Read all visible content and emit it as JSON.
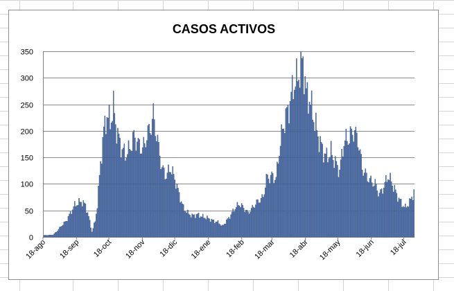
{
  "chart_data": {
    "type": "bar",
    "title": "CASOS ACTIVOS",
    "xlabel": "",
    "ylabel": "",
    "ylim": [
      0,
      350
    ],
    "yticks": [
      0,
      50,
      100,
      150,
      200,
      250,
      300,
      350
    ],
    "grid": true,
    "legend": "none",
    "bar_color": "#4f6fa8",
    "bar_edge_color": "#2c4a80",
    "x_start": "2020-08-18",
    "x_end": "2021-07-28",
    "x_tick_labels": [
      {
        "label": "18-ago",
        "date": "2020-08-18"
      },
      {
        "label": "18-sep",
        "date": "2020-09-18"
      },
      {
        "label": "18-oct",
        "date": "2020-10-18"
      },
      {
        "label": "18-nov",
        "date": "2020-11-18"
      },
      {
        "label": "18-dic",
        "date": "2020-12-18"
      },
      {
        "label": "18-ene",
        "date": "2021-01-18"
      },
      {
        "label": "18-feb",
        "date": "2021-02-18"
      },
      {
        "label": "18-mar",
        "date": "2021-03-18"
      },
      {
        "label": "18-abr",
        "date": "2021-04-18"
      },
      {
        "label": "18-may",
        "date": "2021-05-18"
      },
      {
        "label": "18-jun",
        "date": "2021-06-18"
      },
      {
        "label": "18-jul",
        "date": "2021-07-18"
      }
    ],
    "anchors": [
      [
        "2020-08-18",
        3
      ],
      [
        "2020-08-27",
        4
      ],
      [
        "2020-08-31",
        12
      ],
      [
        "2020-09-04",
        22
      ],
      [
        "2020-09-08",
        30
      ],
      [
        "2020-09-12",
        45
      ],
      [
        "2020-09-16",
        60
      ],
      [
        "2020-09-22",
        67
      ],
      [
        "2020-09-26",
        60
      ],
      [
        "2020-09-29",
        38
      ],
      [
        "2020-10-02",
        10
      ],
      [
        "2020-10-05",
        30
      ],
      [
        "2020-10-07",
        60
      ],
      [
        "2020-10-10",
        140
      ],
      [
        "2020-10-13",
        200
      ],
      [
        "2020-10-16",
        230
      ],
      [
        "2020-10-19",
        215
      ],
      [
        "2020-10-22",
        245
      ],
      [
        "2020-10-25",
        200
      ],
      [
        "2020-10-29",
        170
      ],
      [
        "2020-11-02",
        155
      ],
      [
        "2020-11-06",
        165
      ],
      [
        "2020-11-10",
        190
      ],
      [
        "2020-11-14",
        175
      ],
      [
        "2020-11-18",
        165
      ],
      [
        "2020-11-22",
        190
      ],
      [
        "2020-11-26",
        210
      ],
      [
        "2020-11-28",
        230
      ],
      [
        "2020-12-02",
        180
      ],
      [
        "2020-12-06",
        130
      ],
      [
        "2020-12-10",
        115
      ],
      [
        "2020-12-14",
        130
      ],
      [
        "2020-12-18",
        110
      ],
      [
        "2020-12-22",
        80
      ],
      [
        "2020-12-26",
        55
      ],
      [
        "2020-12-30",
        45
      ],
      [
        "2021-01-03",
        40
      ],
      [
        "2021-01-08",
        42
      ],
      [
        "2021-01-13",
        38
      ],
      [
        "2021-01-18",
        35
      ],
      [
        "2021-01-23",
        30
      ],
      [
        "2021-01-28",
        27
      ],
      [
        "2021-01-31",
        20
      ],
      [
        "2021-02-04",
        30
      ],
      [
        "2021-02-08",
        42
      ],
      [
        "2021-02-12",
        55
      ],
      [
        "2021-02-16",
        62
      ],
      [
        "2021-02-20",
        55
      ],
      [
        "2021-02-24",
        45
      ],
      [
        "2021-02-28",
        55
      ],
      [
        "2021-03-04",
        65
      ],
      [
        "2021-03-10",
        75
      ],
      [
        "2021-03-13",
        110
      ],
      [
        "2021-03-18",
        115
      ],
      [
        "2021-03-22",
        110
      ],
      [
        "2021-03-26",
        180
      ],
      [
        "2021-03-30",
        220
      ],
      [
        "2021-04-03",
        245
      ],
      [
        "2021-04-07",
        285
      ],
      [
        "2021-04-11",
        300
      ],
      [
        "2021-04-14",
        320
      ],
      [
        "2021-04-16",
        333
      ],
      [
        "2021-04-19",
        270
      ],
      [
        "2021-04-22",
        260
      ],
      [
        "2021-04-26",
        225
      ],
      [
        "2021-04-30",
        190
      ],
      [
        "2021-05-04",
        165
      ],
      [
        "2021-05-08",
        150
      ],
      [
        "2021-05-12",
        160
      ],
      [
        "2021-05-16",
        140
      ],
      [
        "2021-05-20",
        125
      ],
      [
        "2021-05-24",
        180
      ],
      [
        "2021-05-28",
        185
      ],
      [
        "2021-06-02",
        200
      ],
      [
        "2021-06-06",
        185
      ],
      [
        "2021-06-10",
        130
      ],
      [
        "2021-06-14",
        115
      ],
      [
        "2021-06-18",
        105
      ],
      [
        "2021-06-22",
        100
      ],
      [
        "2021-06-26",
        80
      ],
      [
        "2021-06-30",
        95
      ],
      [
        "2021-07-04",
        115
      ],
      [
        "2021-07-08",
        100
      ],
      [
        "2021-07-12",
        80
      ],
      [
        "2021-07-16",
        65
      ],
      [
        "2021-07-20",
        55
      ],
      [
        "2021-07-24",
        65
      ],
      [
        "2021-07-28",
        85
      ]
    ]
  }
}
